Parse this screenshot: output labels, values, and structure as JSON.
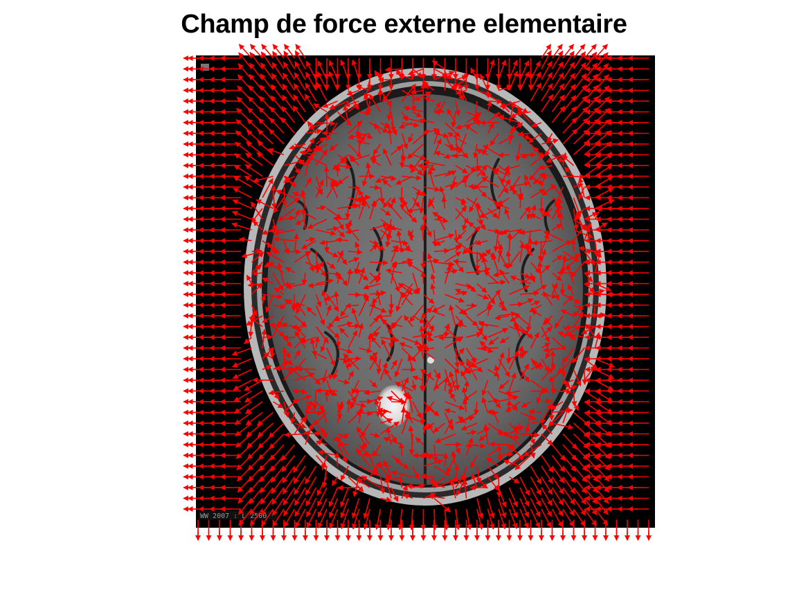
{
  "figure": {
    "title": "Champ de force externe elementaire",
    "corner_text": "WW 2007 : L 2500",
    "arrow_color": "#ff0000",
    "background": "#000000",
    "subject": "axial brain MRI slice with bright focal lesion in posterior left hemisphere"
  }
}
